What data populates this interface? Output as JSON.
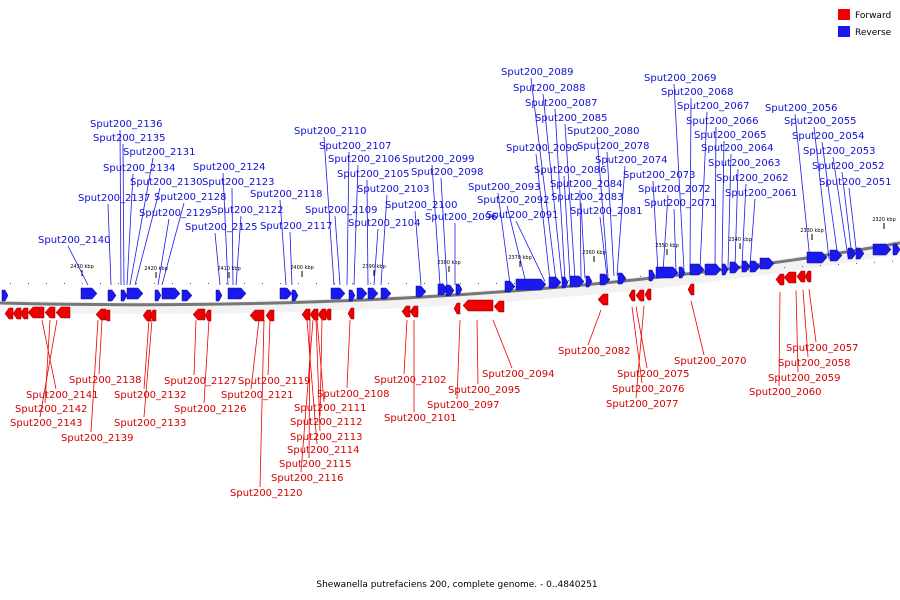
{
  "legend": {
    "forward": {
      "label": "Forward",
      "color": "#ee0000"
    },
    "reverse": {
      "label": "Reverse",
      "color": "#1a1aee"
    }
  },
  "caption": "Shewanella putrefaciens 200, complete genome. - 0..4840251",
  "axis": {
    "ticks": [
      "2430 kbp",
      "2420 kbp",
      "2410 kbp",
      "2400 kbp",
      "2390 kbp",
      "2380 kbp",
      "2370 kbp",
      "2360 kbp",
      "2350 kbp",
      "2340 kbp",
      "2330 kbp",
      "2320 kbp"
    ]
  },
  "reverse_genes": [
    "Sput200_2140",
    "Sput200_2137",
    "Sput200_2136",
    "Sput200_2135",
    "Sput200_2134",
    "Sput200_2131",
    "Sput200_2130",
    "Sput200_2129",
    "Sput200_2128",
    "Sput200_2125",
    "Sput200_2124",
    "Sput200_2123",
    "Sput200_2122",
    "Sput200_2118",
    "Sput200_2117",
    "Sput200_2110",
    "Sput200_2109",
    "Sput200_2107",
    "Sput200_2106",
    "Sput200_2105",
    "Sput200_2104",
    "Sput200_2103",
    "Sput200_2100",
    "Sput200_2099",
    "Sput200_2098",
    "Sput200_2096",
    "Sput200_2093",
    "Sput200_2092",
    "Sput200_2091",
    "Sput200_2090",
    "Sput200_2089",
    "Sput200_2088",
    "Sput200_2087",
    "Sput200_2086",
    "Sput200_2085",
    "Sput200_2084",
    "Sput200_2083",
    "Sput200_2081",
    "Sput200_2080",
    "Sput200_2078",
    "Sput200_2074",
    "Sput200_2073",
    "Sput200_2072",
    "Sput200_2071",
    "Sput200_2069",
    "Sput200_2068",
    "Sput200_2067",
    "Sput200_2066",
    "Sput200_2065",
    "Sput200_2064",
    "Sput200_2063",
    "Sput200_2062",
    "Sput200_2061",
    "Sput200_2056",
    "Sput200_2055",
    "Sput200_2054",
    "Sput200_2053",
    "Sput200_2052",
    "Sput200_2051"
  ],
  "forward_genes": [
    "Sput200_2138",
    "Sput200_2141",
    "Sput200_2142",
    "Sput200_2143",
    "Sput200_2139",
    "Sput200_2132",
    "Sput200_2133",
    "Sput200_2127",
    "Sput200_2126",
    "Sput200_2119",
    "Sput200_2121",
    "Sput200_2120",
    "Sput200_2108",
    "Sput200_2111",
    "Sput200_2112",
    "Sput200_2113",
    "Sput200_2114",
    "Sput200_2115",
    "Sput200_2116",
    "Sput200_2102",
    "Sput200_2101",
    "Sput200_2097",
    "Sput200_2095",
    "Sput200_2094",
    "Sput200_2082",
    "Sput200_2075",
    "Sput200_2076",
    "Sput200_2077",
    "Sput200_2070",
    "Sput200_2057",
    "Sput200_2058",
    "Sput200_2059",
    "Sput200_2060"
  ]
}
